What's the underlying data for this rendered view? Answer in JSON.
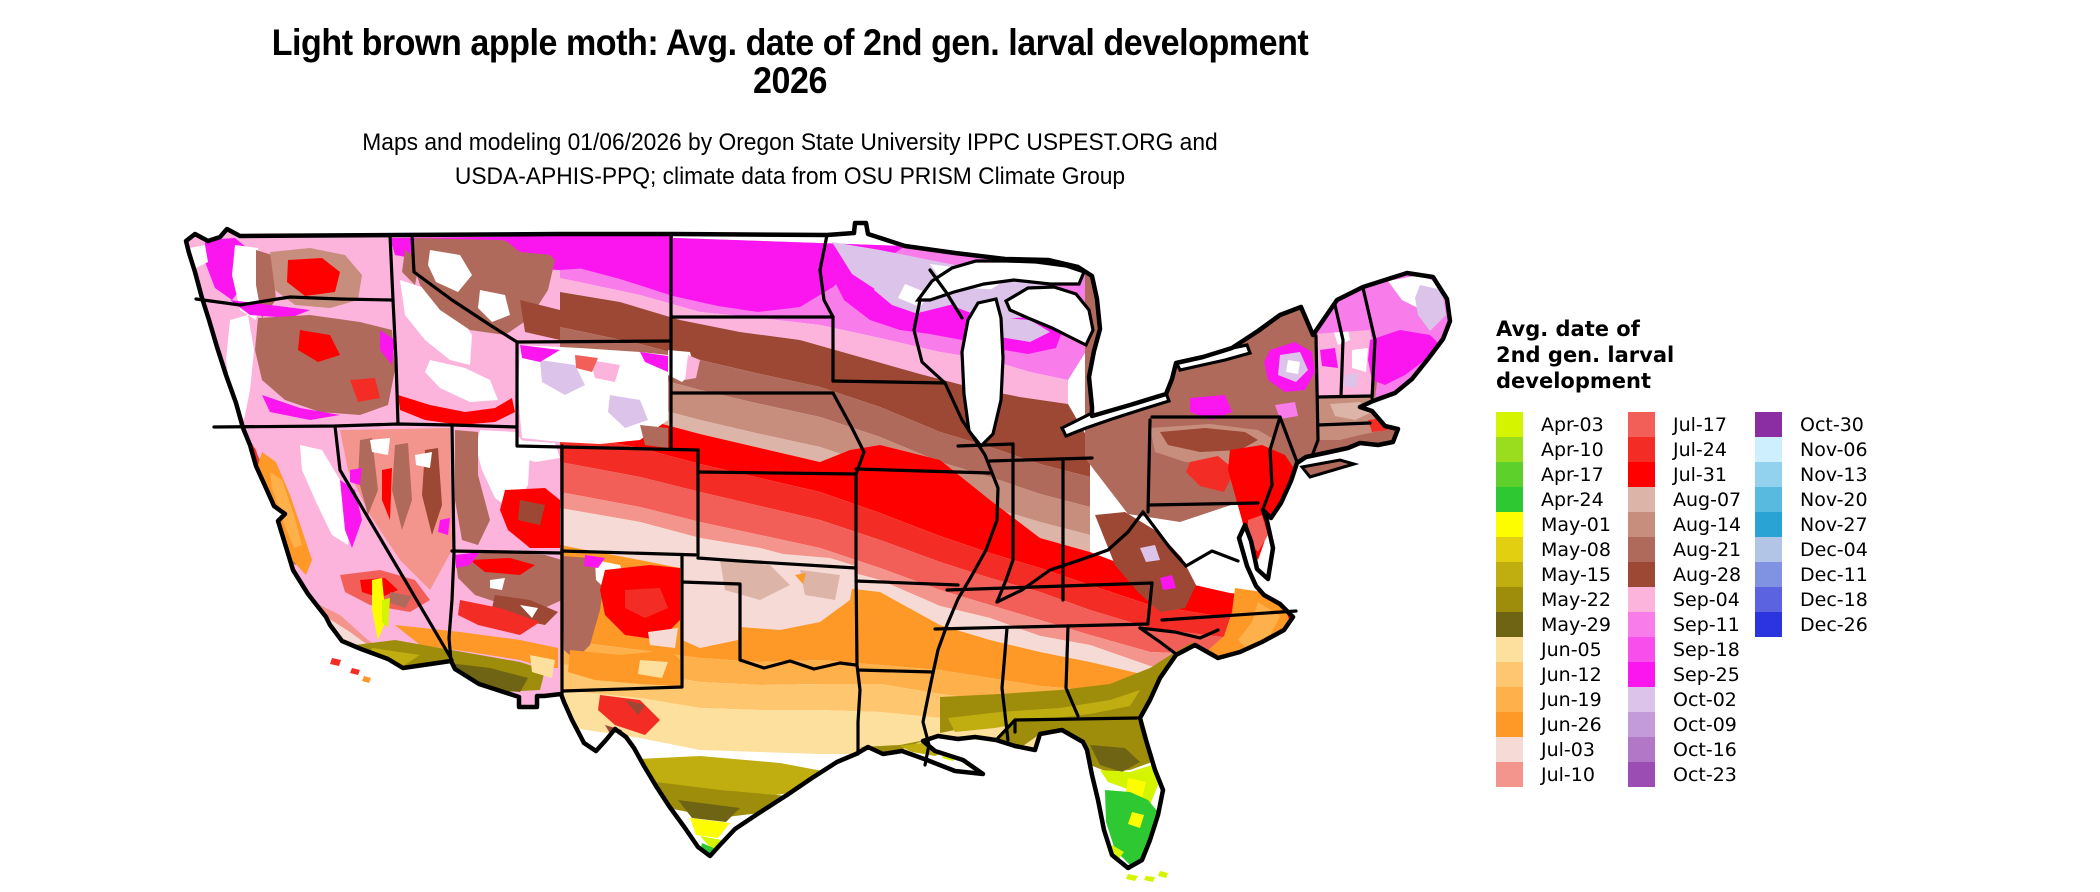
{
  "title": {
    "line1": "Light brown apple moth: Avg. date of 2nd gen. larval development",
    "line2": "2026"
  },
  "subtitle": {
    "line1": "Maps and modeling 01/06/2026 by Oregon State University IPPC USPEST.ORG and",
    "line2": "USDA-APHIS-PPQ; climate data from OSU PRISM Climate Group"
  },
  "legend": {
    "title_lines": [
      "Avg. date of",
      "2nd gen. larval",
      "development"
    ],
    "columns": [
      [
        {
          "label": "Apr-03",
          "color": "#d4f400"
        },
        {
          "label": "Apr-10",
          "color": "#9adc1e"
        },
        {
          "label": "Apr-17",
          "color": "#5ed02c"
        },
        {
          "label": "Apr-24",
          "color": "#2ec832"
        },
        {
          "label": "May-01",
          "color": "#fdfd00"
        },
        {
          "label": "May-08",
          "color": "#e2cf10"
        },
        {
          "label": "May-15",
          "color": "#c0ae11"
        },
        {
          "label": "May-22",
          "color": "#9d8d0b"
        },
        {
          "label": "May-29",
          "color": "#6f6414"
        },
        {
          "label": "Jun-05",
          "color": "#fee09e"
        },
        {
          "label": "Jun-12",
          "color": "#fec76f"
        },
        {
          "label": "Jun-19",
          "color": "#feb04a"
        },
        {
          "label": "Jun-26",
          "color": "#fe9827"
        },
        {
          "label": "Jul-03",
          "color": "#f6dad5"
        },
        {
          "label": "Jul-10",
          "color": "#f4958d"
        }
      ],
      [
        {
          "label": "Jul-17",
          "color": "#f25f59"
        },
        {
          "label": "Jul-24",
          "color": "#f42c26"
        },
        {
          "label": "Jul-31",
          "color": "#fe0000"
        },
        {
          "label": "Aug-07",
          "color": "#dcb4a8"
        },
        {
          "label": "Aug-14",
          "color": "#c78e7e"
        },
        {
          "label": "Aug-21",
          "color": "#b06a5b"
        },
        {
          "label": "Aug-28",
          "color": "#9d4834"
        },
        {
          "label": "Sep-04",
          "color": "#fcb4dd"
        },
        {
          "label": "Sep-11",
          "color": "#f87cea"
        },
        {
          "label": "Sep-18",
          "color": "#f84eeb"
        },
        {
          "label": "Sep-25",
          "color": "#fb15ef"
        },
        {
          "label": "Oct-02",
          "color": "#dcc3ea"
        },
        {
          "label": "Oct-09",
          "color": "#c49bd9"
        },
        {
          "label": "Oct-16",
          "color": "#b278c7"
        },
        {
          "label": "Oct-23",
          "color": "#9b4db4"
        }
      ],
      [
        {
          "label": "Oct-30",
          "color": "#8b2da3"
        },
        {
          "label": "Nov-06",
          "color": "#cdeffe"
        },
        {
          "label": "Nov-13",
          "color": "#92d2ee"
        },
        {
          "label": "Nov-20",
          "color": "#57bade"
        },
        {
          "label": "Nov-27",
          "color": "#28a3d3"
        },
        {
          "label": "Dec-04",
          "color": "#b2c5e6"
        },
        {
          "label": "Dec-11",
          "color": "#8093e2"
        },
        {
          "label": "Dec-18",
          "color": "#5c63e0"
        },
        {
          "label": "Dec-26",
          "color": "#2b34df"
        }
      ]
    ]
  }
}
